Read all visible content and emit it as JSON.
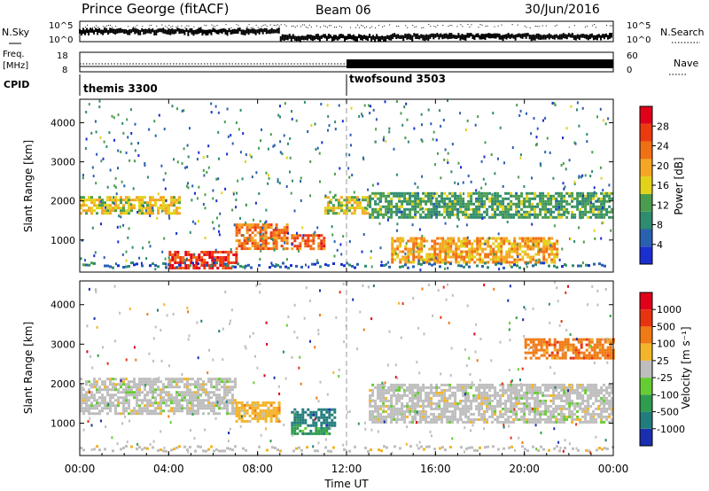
{
  "header": {
    "station": "Prince George (fitACF)",
    "beam": "Beam 06",
    "date": "30/Jun/2016"
  },
  "summary_panels": {
    "nsky": {
      "label": "N.Sky",
      "ticks_left": [
        "10^5",
        "10^0"
      ],
      "ticks_right": [
        "10^5",
        "10^0"
      ],
      "legend": "N.Search"
    },
    "freq": {
      "label_line1": "Freq.",
      "label_line2": "[MHz]",
      "ticks_left": [
        "18",
        "8"
      ],
      "ticks_right": [
        "60",
        "0"
      ],
      "legend": "Nave"
    },
    "cpid": {
      "label": "CPID",
      "modes": [
        {
          "name": "themis 3300",
          "start_hour": 0
        },
        {
          "name": "twofsound 3503",
          "start_hour": 12
        }
      ]
    }
  },
  "chart_data": [
    {
      "type": "heatmap",
      "name": "power",
      "ylabel": "Slant Range [km]",
      "yticks": [
        "1000",
        "2000",
        "3000",
        "4000"
      ],
      "ylim": [
        180,
        4600
      ],
      "xlim": [
        0,
        24
      ],
      "colorbar": {
        "label": "Power [dB]",
        "ticks": [
          "4",
          "8",
          "12",
          "16",
          "20",
          "24",
          "28"
        ],
        "range": [
          0,
          30
        ]
      },
      "bands": [
        {
          "t_start": 0.0,
          "t_end": 4.5,
          "r_center": 1900,
          "r_width": 450,
          "level": 16
        },
        {
          "t_start": 4.0,
          "t_end": 7.0,
          "r_center": 500,
          "r_width": 450,
          "level": 27
        },
        {
          "t_start": 7.0,
          "t_end": 9.3,
          "r_center": 1100,
          "r_width": 650,
          "level": 22
        },
        {
          "t_start": 9.5,
          "t_end": 11.0,
          "r_center": 950,
          "r_width": 400,
          "level": 24
        },
        {
          "t_start": 11.0,
          "t_end": 13.0,
          "r_center": 1900,
          "r_width": 450,
          "level": 14
        },
        {
          "t_start": 14.0,
          "t_end": 21.5,
          "r_center": 750,
          "r_width": 650,
          "level": 19
        },
        {
          "t_start": 13.0,
          "t_end": 24.0,
          "r_center": 1900,
          "r_width": 650,
          "level": 10
        }
      ]
    },
    {
      "type": "heatmap",
      "name": "velocity",
      "ylabel": "Slant Range [km]",
      "yticks": [
        "1000",
        "2000",
        "3000",
        "4000"
      ],
      "ylim": [
        180,
        4600
      ],
      "xlim": [
        0,
        24
      ],
      "colorbar": {
        "label": "Velocity  [m s⁻¹]",
        "ticks": [
          "1000",
          "500",
          "100",
          "25",
          "-25",
          "-100",
          "-500",
          "-1000"
        ]
      },
      "bands": [
        {
          "t_start": 0.0,
          "t_end": 7.0,
          "r_center": 1700,
          "r_width": 900,
          "level": 4
        },
        {
          "t_start": 7.0,
          "t_end": 9.0,
          "r_center": 1300,
          "r_width": 500,
          "level": 5
        },
        {
          "t_start": 9.5,
          "t_end": 11.5,
          "r_center": 1150,
          "r_width": 450,
          "level": 1
        },
        {
          "t_start": 9.5,
          "t_end": 11.2,
          "r_center": 800,
          "r_width": 200,
          "level": 2
        },
        {
          "t_start": 13.0,
          "t_end": 24.0,
          "r_center": 1500,
          "r_width": 1000,
          "level": 4
        },
        {
          "t_start": 20.0,
          "t_end": 24.0,
          "r_center": 2900,
          "r_width": 500,
          "level": 6
        }
      ]
    }
  ],
  "time_axis": {
    "label": "Time UT",
    "ticks": [
      "00:00",
      "04:00",
      "08:00",
      "12:00",
      "16:00",
      "20:00",
      "00:00"
    ]
  },
  "colors": {
    "power_scale": [
      "#1a2fd0",
      "#2a60b0",
      "#2f8c6e",
      "#4a9d4e",
      "#e3d21a",
      "#f5a623",
      "#f07014",
      "#ec3a10",
      "#e0001a"
    ],
    "velocity_scale": [
      "#1a2fb0",
      "#227c7c",
      "#2f9c4e",
      "#66cc33",
      "#bebebe",
      "#f2b52a",
      "#f07a14",
      "#e63310",
      "#e0001a"
    ]
  }
}
